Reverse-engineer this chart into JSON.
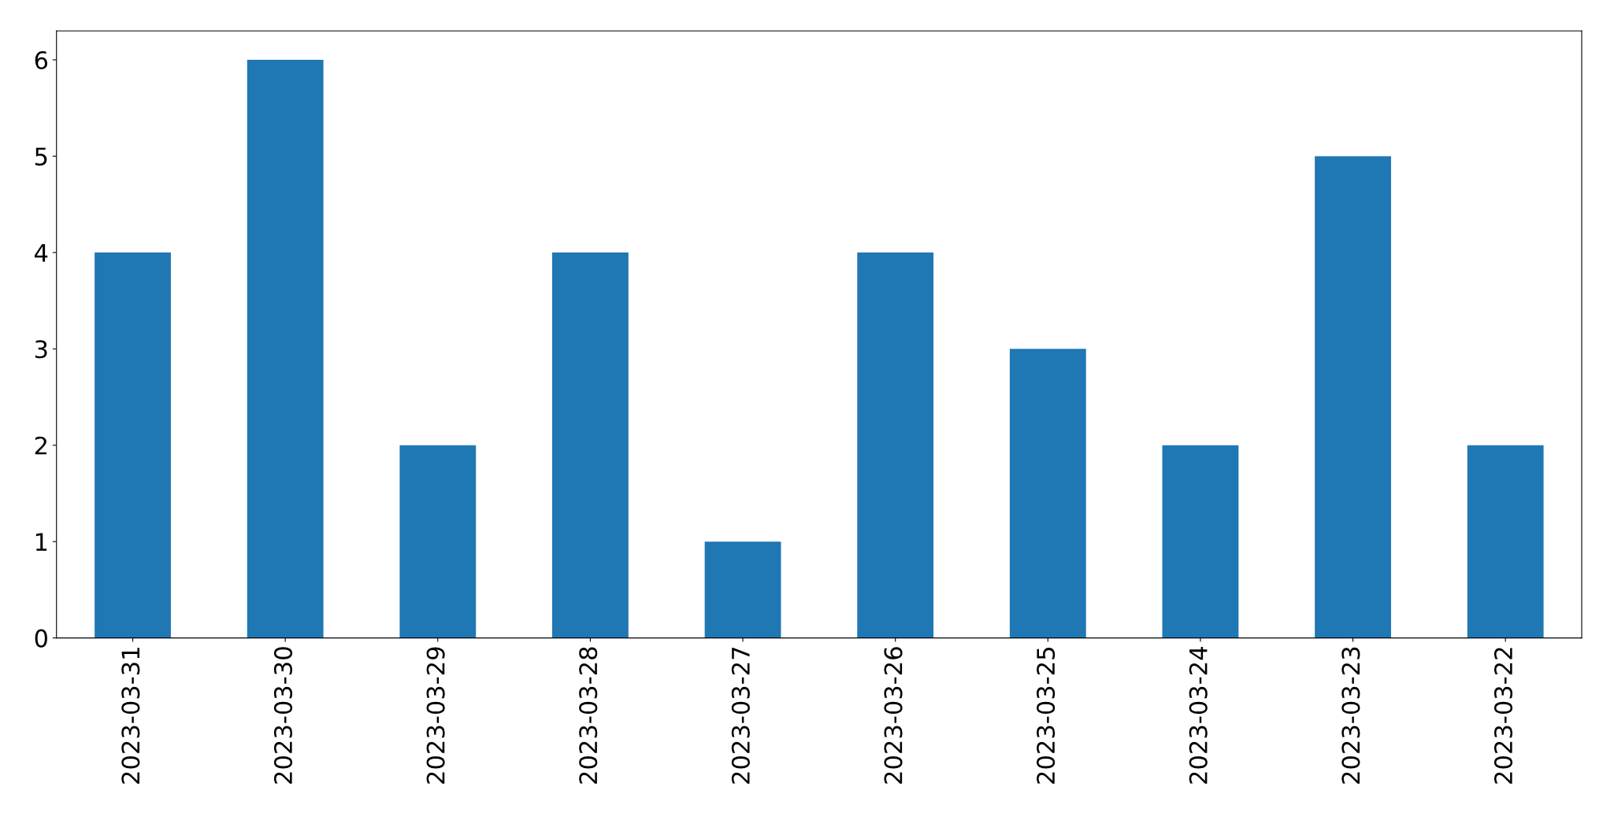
{
  "chart_data": {
    "type": "bar",
    "categories": [
      "2023-03-31",
      "2023-03-30",
      "2023-03-29",
      "2023-03-28",
      "2023-03-27",
      "2023-03-26",
      "2023-03-25",
      "2023-03-24",
      "2023-03-23",
      "2023-03-22"
    ],
    "values": [
      4,
      6,
      2,
      4,
      1,
      4,
      3,
      2,
      5,
      2
    ],
    "color": "#1f77b4",
    "ylim": [
      0,
      6.3
    ],
    "yticks": [
      0,
      1,
      2,
      3,
      4,
      5,
      6
    ],
    "grid": false,
    "legend": false
  }
}
